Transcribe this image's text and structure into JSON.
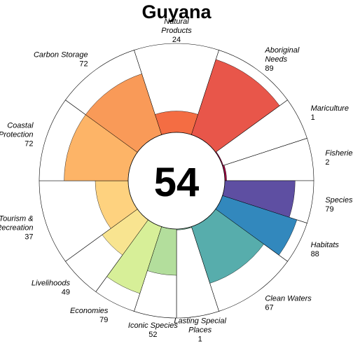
{
  "chart_data": {
    "type": "flower",
    "title": "Guyana",
    "overall_score": "54",
    "max_value": 100,
    "petals": [
      {
        "name": "Natural Products",
        "value": 24,
        "weight": 1,
        "color": "#F46D43"
      },
      {
        "name": "Aboriginal Needs",
        "value": 89,
        "weight": 1,
        "color": "#E8564A"
      },
      {
        "name": "Mariculture",
        "value": 1,
        "weight": 0.5,
        "color": "#9E0142"
      },
      {
        "name": "Fisheries",
        "value": 2,
        "weight": 0.5,
        "color": "#9E0142"
      },
      {
        "name": "Species",
        "value": 79,
        "weight": 0.5,
        "color": "#5E4FA2"
      },
      {
        "name": "Habitats",
        "value": 88,
        "weight": 0.5,
        "color": "#3288BD"
      },
      {
        "name": "Clean Waters",
        "value": 67,
        "weight": 1,
        "color": "#57ADAC"
      },
      {
        "name": "Lasting Special Places",
        "value": 1,
        "weight": 0.5,
        "color": "#7FC6A5"
      },
      {
        "name": "Iconic Species",
        "value": 52,
        "weight": 0.5,
        "color": "#B3DE9C"
      },
      {
        "name": "Economies",
        "value": 79,
        "weight": 0.5,
        "color": "#D7EF98"
      },
      {
        "name": "Livelihoods",
        "value": 49,
        "weight": 0.5,
        "color": "#F8E490"
      },
      {
        "name": "Tourism & Recreation",
        "value": 37,
        "weight": 1,
        "color": "#FED27F"
      },
      {
        "name": "Coastal Protection",
        "value": 72,
        "weight": 1,
        "color": "#FDB467"
      },
      {
        "name": "Carbon Storage",
        "value": 72,
        "weight": 1,
        "color": "#F99A58"
      }
    ]
  }
}
